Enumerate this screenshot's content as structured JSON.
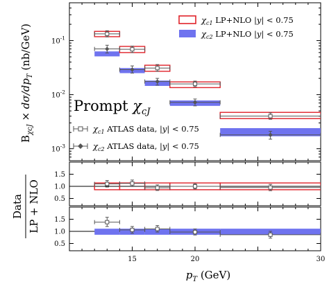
{
  "chart_data": {
    "type": "scatter",
    "x_label": "p_T (GeV)",
    "x_range": [
      10,
      30
    ],
    "x_ticks": [
      15,
      20,
      30
    ],
    "main": {
      "y_label": "B_χcJ × dσ/dp_T (nb/GeV)",
      "y_scale": "log",
      "y_range": [
        0.0006,
        0.5
      ],
      "y_ticks": [
        {
          "value": 0.1,
          "label": "10^-1"
        },
        {
          "value": 0.01,
          "label": "10^-2"
        },
        {
          "value": 0.001,
          "label": "10^-3"
        }
      ],
      "annotation": "Prompt χcJ",
      "legend": [
        {
          "key": "lp_c1",
          "label": "χc1 LP+NLO |y| < 0.75",
          "style": "red-open-box"
        },
        {
          "key": "lp_c2",
          "label": "χc2 LP+NLO |y| < 0.75",
          "style": "blue-filled-band"
        },
        {
          "key": "data_c1",
          "label": "χc1 ATLAS data, |y| < 0.75",
          "style": "open-square"
        },
        {
          "key": "data_c2",
          "label": "χc2 ATLAS data, |y| < 0.75",
          "style": "filled-diamond"
        }
      ],
      "bins": [
        [
          12,
          14
        ],
        [
          14,
          16
        ],
        [
          16,
          18
        ],
        [
          18,
          22
        ],
        [
          22,
          30
        ]
      ],
      "lp_c1": [
        [
          0.118,
          0.148
        ],
        [
          0.06,
          0.078
        ],
        [
          0.027,
          0.035
        ],
        [
          0.0135,
          0.0172
        ],
        [
          0.0036,
          0.0047
        ]
      ],
      "lp_c2": [
        [
          0.051,
          0.063
        ],
        [
          0.025,
          0.031
        ],
        [
          0.0145,
          0.0182
        ],
        [
          0.0062,
          0.0078
        ],
        [
          0.0017,
          0.0024
        ]
      ],
      "data_c1": {
        "x": [
          13,
          15,
          17,
          20,
          26
        ],
        "y": [
          0.133,
          0.069,
          0.031,
          0.0158,
          0.004
        ],
        "err": [
          [
            0.117,
            0.152
          ],
          [
            0.06,
            0.079
          ],
          [
            0.027,
            0.036
          ],
          [
            0.014,
            0.0178
          ],
          [
            0.0035,
            0.0046
          ]
        ]
      },
      "data_c2": {
        "x": [
          13,
          15,
          17,
          20,
          26
        ],
        "y": [
          0.07,
          0.029,
          0.0175,
          0.0072,
          0.0018
        ],
        "err": [
          [
            0.059,
            0.082
          ],
          [
            0.025,
            0.034
          ],
          [
            0.015,
            0.02
          ],
          [
            0.0062,
            0.0083
          ],
          [
            0.0015,
            0.0021
          ]
        ]
      }
    },
    "ratio": {
      "y_label": "Data / LP+NLO",
      "y_range": [
        0.2,
        2.0
      ],
      "y_ticks": [
        "1.5",
        "1.0",
        "0.5"
      ],
      "upper": {
        "bands": [
          [
            0.86,
            1.14
          ],
          [
            0.86,
            1.14
          ],
          [
            0.86,
            1.14
          ],
          [
            0.86,
            1.14
          ],
          [
            0.86,
            1.14
          ]
        ],
        "points": {
          "x": [
            13,
            15,
            17,
            20,
            26
          ],
          "y": [
            1.1,
            1.12,
            0.94,
            1.0,
            0.95
          ],
          "err": [
            [
              0.97,
              1.24
            ],
            [
              0.99,
              1.26
            ],
            [
              0.83,
              1.06
            ],
            [
              0.89,
              1.11
            ],
            [
              0.82,
              1.08
            ]
          ]
        }
      },
      "lower": {
        "bands": [
          [
            0.86,
            1.11
          ],
          [
            0.86,
            1.11
          ],
          [
            0.86,
            1.11
          ],
          [
            0.86,
            1.11
          ],
          [
            0.86,
            1.11
          ]
        ],
        "points": {
          "x": [
            13,
            15,
            17,
            20,
            26
          ],
          "y": [
            1.38,
            1.06,
            1.1,
            0.97,
            0.86
          ],
          "err": [
            [
              1.2,
              1.58
            ],
            [
              0.92,
              1.2
            ],
            [
              0.97,
              1.24
            ],
            [
              0.85,
              1.1
            ],
            [
              0.72,
              1.0
            ]
          ]
        }
      }
    },
    "colors": {
      "red": "#e0222a",
      "blue": "#6f73ef",
      "data": "#555555"
    }
  }
}
